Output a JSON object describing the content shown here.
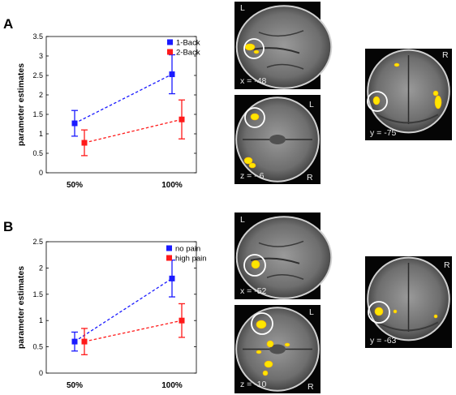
{
  "panels": [
    {
      "letter": "A"
    },
    {
      "letter": "B"
    }
  ],
  "chart_data": [
    {
      "type": "line",
      "ylabel": "parameter estimates",
      "categories": [
        "50%",
        "100%"
      ],
      "yticks": [
        "0",
        "0.5",
        "1",
        "1.5",
        "2",
        "2.5",
        "3",
        "3.5"
      ],
      "ylim": [
        0,
        3.5
      ],
      "legend_position": "top-right",
      "series": [
        {
          "name": "1-Back",
          "color": "#1a1aff",
          "values": [
            1.27,
            2.53
          ],
          "err": [
            0.33,
            0.5
          ]
        },
        {
          "name": "2-Back",
          "color": "#ff1a1a",
          "values": [
            0.77,
            1.37
          ],
          "err": [
            0.33,
            0.5
          ]
        }
      ]
    },
    {
      "type": "line",
      "ylabel": "parameter estimates",
      "categories": [
        "50%",
        "100%"
      ],
      "yticks": [
        "0",
        "0.5",
        "1",
        "1.5",
        "2",
        "2.5"
      ],
      "ylim": [
        0,
        2.5
      ],
      "legend_position": "top-right",
      "series": [
        {
          "name": "no pain",
          "color": "#1a1aff",
          "values": [
            0.6,
            1.8
          ],
          "err": [
            0.18,
            0.35
          ]
        },
        {
          "name": "high pain",
          "color": "#ff1a1a",
          "values": [
            0.6,
            1.0
          ],
          "err": [
            0.25,
            0.32
          ]
        }
      ]
    }
  ],
  "brain_images": [
    {
      "name": "a-sagittal",
      "orient_label": "L",
      "coord_label": "x = -48"
    },
    {
      "name": "a-axial",
      "orient_label": "L",
      "orient_label_2": "R",
      "coord_label": "z = - 6"
    },
    {
      "name": "a-coronal",
      "orient_label": "R",
      "coord_label": "y = -75"
    },
    {
      "name": "b-sagittal",
      "orient_label": "L",
      "coord_label": "x = -52"
    },
    {
      "name": "b-axial",
      "orient_label": "L",
      "orient_label_2": "R",
      "coord_label": "z = -10"
    },
    {
      "name": "b-coronal",
      "orient_label": "R",
      "coord_label": "y = -63"
    }
  ]
}
